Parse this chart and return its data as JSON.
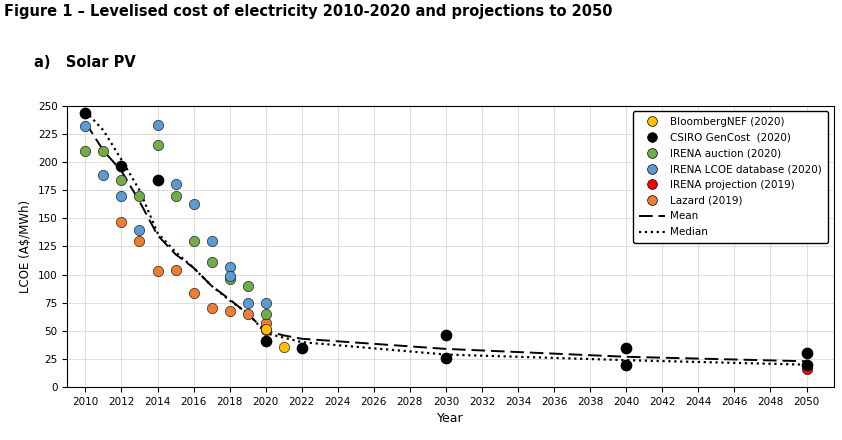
{
  "title_line1": "Figure 1 – Levelised cost of electricity 2010-2020 and projections to 2050",
  "title_line2": "a)   Solar PV",
  "xlabel": "Year",
  "ylabel": "LCOE (A$/MWh)",
  "xlim": [
    2009.0,
    2051.5
  ],
  "ylim": [
    0,
    250
  ],
  "yticks": [
    0,
    25,
    50,
    75,
    100,
    125,
    150,
    175,
    200,
    225,
    250
  ],
  "xticks": [
    2010,
    2012,
    2014,
    2016,
    2018,
    2020,
    2022,
    2024,
    2026,
    2028,
    2030,
    2032,
    2034,
    2036,
    2038,
    2040,
    2042,
    2044,
    2046,
    2048,
    2050
  ],
  "bloomberg_color": "#FFC000",
  "csiro_color": "#000000",
  "irena_auction_color": "#70AD47",
  "irena_lcoe_color": "#5B9BD5",
  "irena_proj_color": "#FF0000",
  "lazard_color": "#ED7D31",
  "bloomberg_data": [
    [
      2020,
      52
    ],
    [
      2021,
      36
    ]
  ],
  "csiro_data": [
    [
      2010,
      243
    ],
    [
      2012,
      196
    ],
    [
      2014,
      184
    ],
    [
      2020,
      41
    ],
    [
      2022,
      35
    ],
    [
      2030,
      46
    ],
    [
      2030,
      26
    ],
    [
      2040,
      35
    ],
    [
      2040,
      20
    ],
    [
      2050,
      30
    ],
    [
      2050,
      20
    ]
  ],
  "irena_auction_data": [
    [
      2010,
      210
    ],
    [
      2011,
      210
    ],
    [
      2012,
      184
    ],
    [
      2013,
      170
    ],
    [
      2014,
      215
    ],
    [
      2015,
      170
    ],
    [
      2016,
      130
    ],
    [
      2017,
      111
    ],
    [
      2018,
      96
    ],
    [
      2019,
      90
    ],
    [
      2020,
      65
    ]
  ],
  "irena_lcoe_data": [
    [
      2010,
      232
    ],
    [
      2011,
      188
    ],
    [
      2012,
      170
    ],
    [
      2013,
      140
    ],
    [
      2014,
      233
    ],
    [
      2015,
      180
    ],
    [
      2016,
      163
    ],
    [
      2017,
      130
    ],
    [
      2018,
      107
    ],
    [
      2018,
      99
    ],
    [
      2019,
      75
    ],
    [
      2020,
      75
    ]
  ],
  "irena_proj_data": [
    [
      2030,
      26
    ],
    [
      2040,
      20
    ],
    [
      2050,
      16
    ]
  ],
  "lazard_data": [
    [
      2012,
      147
    ],
    [
      2013,
      130
    ],
    [
      2014,
      103
    ],
    [
      2015,
      104
    ],
    [
      2016,
      84
    ],
    [
      2017,
      70
    ],
    [
      2018,
      68
    ],
    [
      2019,
      65
    ],
    [
      2020,
      57
    ],
    [
      2020,
      51
    ]
  ],
  "mean_x": [
    2010,
    2011,
    2012,
    2013,
    2014,
    2015,
    2016,
    2017,
    2018,
    2019,
    2020,
    2021,
    2022,
    2030,
    2040,
    2050
  ],
  "mean_y": [
    235,
    210,
    192,
    165,
    135,
    118,
    106,
    90,
    78,
    65,
    50,
    46,
    43,
    34,
    27,
    23
  ],
  "median_x": [
    2010,
    2011,
    2012,
    2013,
    2014,
    2015,
    2016,
    2017,
    2018,
    2019,
    2020,
    2021,
    2022,
    2030,
    2040,
    2050
  ],
  "median_y": [
    245,
    228,
    202,
    175,
    137,
    120,
    106,
    90,
    77,
    66,
    48,
    44,
    40,
    29,
    24,
    20
  ],
  "legend_labels": [
    "BloombergNEF (2020)",
    "CSIRO GenCost  (2020)",
    "IRENA auction (2020)",
    "IRENA LCOE database (2020)",
    "IRENA projection (2019)",
    "Lazard (2019)",
    "Mean",
    "Median"
  ]
}
